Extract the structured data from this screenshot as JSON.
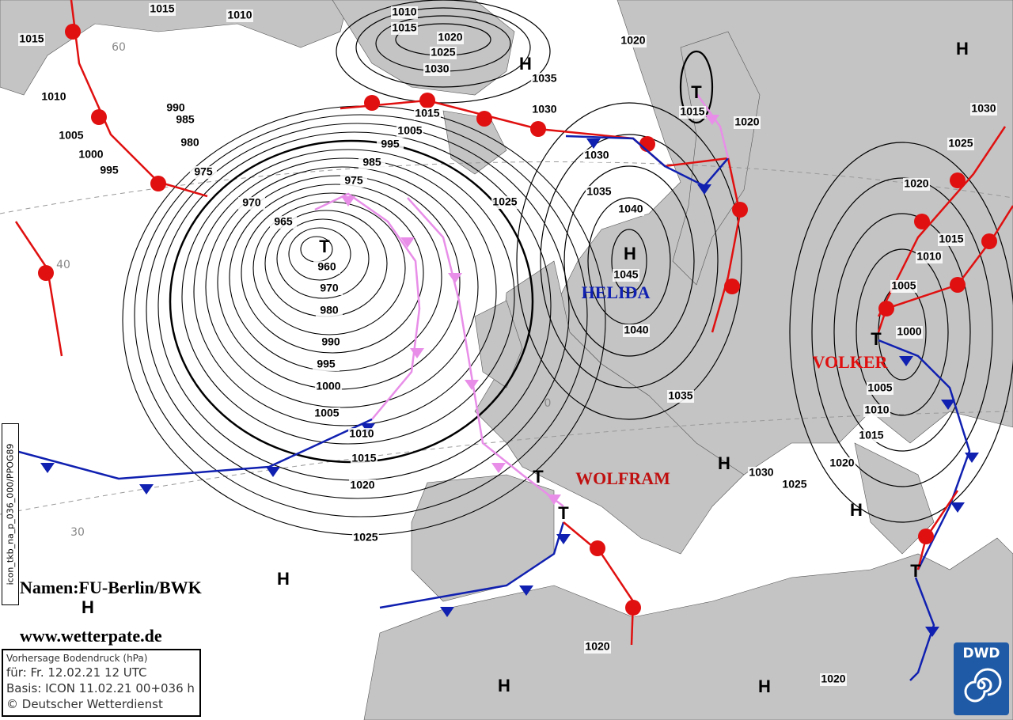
{
  "map": {
    "colors": {
      "land": "#c4c4c4",
      "sea": "#ffffff",
      "warm_front": "#e01010",
      "cold_front": "#1020b0",
      "occlusion": "#e88ee8",
      "isobar": "#000000"
    },
    "isobar_labels": [
      "1015",
      "1010",
      "1015",
      "1010",
      "1005",
      "1000",
      "995",
      "990",
      "985",
      "980",
      "975",
      "970",
      "965",
      "960",
      "970",
      "980",
      "990",
      "995",
      "1000",
      "1005",
      "1010",
      "1015",
      "1020",
      "1025",
      "975",
      "985",
      "995",
      "1005",
      "1015",
      "1010",
      "1015",
      "1020",
      "1025",
      "1030",
      "1035",
      "1030",
      "1030",
      "1025",
      "1035",
      "1040",
      "1045",
      "1040",
      "1035",
      "1030",
      "1025",
      "1020",
      "1015",
      "1010",
      "1005",
      "1000",
      "1005",
      "1010",
      "1015",
      "1020",
      "1025",
      "1030",
      "1020",
      "1020",
      "1020",
      "1020",
      "1015"
    ],
    "latitude_labels": [
      "60",
      "40",
      "30",
      "0"
    ],
    "highs": [
      "H",
      "H",
      "H",
      "H",
      "H",
      "H",
      "H",
      "H",
      "H"
    ],
    "lows": [
      "T",
      "T",
      "T",
      "T",
      "T",
      "T"
    ],
    "pressure_system_names": [
      {
        "name": "HELIDA",
        "color": "#1020b0"
      },
      {
        "name": "VOLKER",
        "color": "#e01010"
      },
      {
        "name": "WOLFRAM",
        "color": "#c01010"
      }
    ]
  },
  "watermark": {
    "names": "Namen:FU-Berlin/BWK",
    "site": "www.wetterpate.de"
  },
  "side_code": "icon_tkb_na_p_036_000/PPOG89",
  "info": {
    "title": "Vorhersage Bodendruck (hPa)",
    "valid": "für:  Fr. 12.02.21  12 UTC",
    "basis": "Basis: ICON  11.02.21 00+036 h",
    "copyright": "© Deutscher Wetterdienst"
  },
  "logo": {
    "text": "DWD",
    "color": "#1f5aa6"
  }
}
